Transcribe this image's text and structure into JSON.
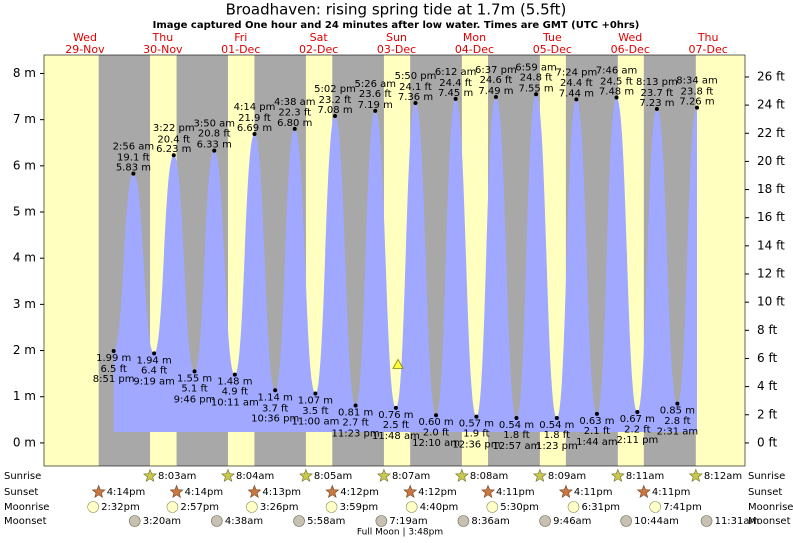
{
  "header": {
    "title": "Broadhaven: rising  spring tide at 1.7m (5.5ft)",
    "subtitle": "Image captured One hour and 24 minutes after low water. Times are GMT (UTC +0hrs)"
  },
  "days": {
    "weekdays": [
      "Wed",
      "Thu",
      "Fri",
      "Sat",
      "Sun",
      "Mon",
      "Tue",
      "Wed",
      "Thu"
    ],
    "dates": [
      "29-Nov",
      "30-Nov",
      "01-Dec",
      "02-Dec",
      "03-Dec",
      "04-Dec",
      "05-Dec",
      "06-Dec",
      "07-Dec"
    ]
  },
  "chart_data": {
    "type": "area",
    "color": "#a0a8ff",
    "current_level": 1.7,
    "ylim": [
      -0.5,
      8.4
    ],
    "yticks": [
      {
        "value": 0,
        "label": "0 m"
      },
      {
        "value": 1,
        "label": "1 m"
      },
      {
        "value": 2,
        "label": "2 m"
      },
      {
        "value": 3,
        "label": "3 m"
      },
      {
        "value": 4,
        "label": "4 m"
      },
      {
        "value": 5,
        "label": "5 m"
      },
      {
        "value": 6,
        "label": "6 m"
      },
      {
        "value": 7,
        "label": "7 m"
      },
      {
        "value": 8,
        "label": "8 m"
      }
    ],
    "y2lim": [
      -1.64,
      27.56
    ],
    "y2ticks": [
      {
        "value": 0,
        "label": "0 ft"
      },
      {
        "value": 2,
        "label": "2 ft"
      },
      {
        "value": 4,
        "label": "4 ft"
      },
      {
        "value": 6,
        "label": "6 ft"
      },
      {
        "value": 8,
        "label": "8 ft"
      },
      {
        "value": 10,
        "label": "10 ft"
      },
      {
        "value": 12,
        "label": "12 ft"
      },
      {
        "value": 14,
        "label": "14 ft"
      },
      {
        "value": 16,
        "label": "16 ft"
      },
      {
        "value": 18,
        "label": "18 ft"
      },
      {
        "value": 20,
        "label": "20 ft"
      },
      {
        "value": 22,
        "label": "22 ft"
      },
      {
        "value": 24,
        "label": "24 ft"
      },
      {
        "value": 26,
        "label": "26 ft"
      }
    ],
    "times": [
      "8:51 pm",
      "2:56 am",
      "9:19 am",
      "3:22 pm",
      "9:46 pm",
      "3:50 am",
      "10:11 am",
      "4:14 pm",
      "10:36 pm",
      "4:38 am",
      "11:00 am",
      "5:02 pm",
      "11:23 pm",
      "5:26 am",
      "11:48 am",
      "5:50 pm",
      "12:10 am",
      "6:12 am",
      "12:36 pm",
      "6:37 pm",
      "12:57 am",
      "6:59 am",
      "1:23 pm",
      "7:24 pm",
      "1:44 am",
      "7:46 am",
      "2:11 pm",
      "8:13 pm",
      "2:31 am",
      "8:34 am"
    ],
    "series": [
      {
        "values": [
          1.99,
          5.83,
          1.94,
          6.23,
          1.55,
          6.33,
          1.48,
          6.69,
          1.14,
          6.8,
          1.07,
          7.08,
          0.81,
          7.19,
          0.76,
          7.36,
          0.6,
          7.45,
          0.57,
          7.49,
          0.54,
          7.55,
          0.54,
          7.44,
          0.63,
          7.48,
          0.67,
          7.23,
          0.85,
          7.26
        ],
        "value_labels": [
          "1.99 m",
          "5.83 m",
          "1.94 m",
          "6.23 m",
          "1.55 m",
          "6.33 m",
          "1.48 m",
          "6.69 m",
          "1.14 m",
          "6.80 m",
          "1.07 m",
          "7.08 m",
          "0.81 m",
          "7.19 m",
          "0.76 m",
          "7.36 m",
          "0.60 m",
          "7.45 m",
          "0.57 m",
          "7.49 m",
          "0.54 m",
          "7.55 m",
          "0.54 m",
          "7.44 m",
          "0.63 m",
          "7.48 m",
          "0.67 m",
          "7.23 m",
          "0.85 m",
          "7.26 m"
        ]
      },
      {
        "axis": "y2",
        "values": [
          6.5,
          19.1,
          6.4,
          20.4,
          5.1,
          20.8,
          4.9,
          21.9,
          3.7,
          22.3,
          3.5,
          23.2,
          2.7,
          23.6,
          2.5,
          24.1,
          2.0,
          24.4,
          1.9,
          24.6,
          1.8,
          24.8,
          1.8,
          24.4,
          2.1,
          24.5,
          2.2,
          23.7,
          2.8,
          23.8
        ],
        "value_labels": [
          "6.5 ft",
          "19.1 ft",
          "6.4 ft",
          "20.4 ft",
          "5.1 ft",
          "20.8 ft",
          "4.9 ft",
          "21.9 ft",
          "3.7 ft",
          "22.3 ft",
          "3.5 ft",
          "23.2 ft",
          "2.7 ft",
          "23.6 ft",
          "2.5 ft",
          "24.1 ft",
          "2.0 ft",
          "24.4 ft",
          "1.9 ft",
          "24.6 ft",
          "1.8 ft",
          "24.8 ft",
          "1.8 ft",
          "24.4 ft",
          "2.1 ft",
          "24.5 ft",
          "2.2 ft",
          "23.7 ft",
          "2.8 ft",
          "23.8 ft"
        ]
      }
    ]
  },
  "almanac": {
    "row_labels": [
      "Sunrise",
      "Sunset",
      "Moonrise",
      "Moonset"
    ],
    "sunrise": [
      null,
      "8:03am",
      "8:04am",
      "8:05am",
      "8:07am",
      "8:08am",
      "8:09am",
      "8:11am",
      "8:12am"
    ],
    "sunset": [
      "4:14pm",
      "4:14pm",
      "4:13pm",
      "4:12pm",
      "4:12pm",
      "4:11pm",
      "4:11pm",
      "4:11pm",
      null
    ],
    "moonrise": [
      "2:32pm",
      "2:57pm",
      "3:26pm",
      "3:59pm",
      "4:40pm",
      "5:30pm",
      "6:31pm",
      "7:41pm",
      null
    ],
    "moonset": [
      null,
      "3:20am",
      "4:38am",
      "5:58am",
      "7:19am",
      "8:36am",
      "9:46am",
      "10:44am",
      "11:31am"
    ],
    "full_moon": "Full Moon | 3:48pm"
  }
}
